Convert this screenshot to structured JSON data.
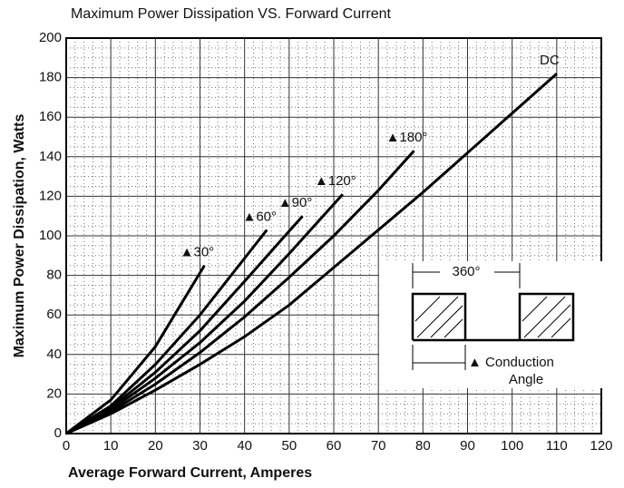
{
  "chart_data": {
    "type": "line",
    "title": "Maximum Power Dissipation VS. Forward Current",
    "xlabel": "Average Forward Current, Amperes",
    "ylabel": "Maximum Power Dissipation, Watts",
    "xlim": [
      0,
      120
    ],
    "ylim": [
      0,
      200
    ],
    "xticks": [
      0,
      10,
      20,
      30,
      40,
      50,
      60,
      70,
      80,
      90,
      100,
      110,
      120
    ],
    "yticks": [
      0,
      20,
      40,
      60,
      80,
      100,
      120,
      140,
      160,
      180,
      200
    ],
    "grid": true,
    "series": [
      {
        "name": "▲30°",
        "color": "#000000",
        "x": [
          0,
          10,
          20,
          31
        ],
        "values": [
          0,
          17,
          44,
          85
        ]
      },
      {
        "name": "▲60°",
        "color": "#000000",
        "x": [
          0,
          10,
          20,
          30,
          45
        ],
        "values": [
          0,
          14,
          35,
          60,
          103
        ]
      },
      {
        "name": "▲90°",
        "color": "#000000",
        "x": [
          0,
          10,
          20,
          30,
          40,
          53
        ],
        "values": [
          0,
          13,
          31,
          52,
          77,
          110
        ]
      },
      {
        "name": "▲120°",
        "color": "#000000",
        "x": [
          0,
          10,
          20,
          30,
          40,
          50,
          62
        ],
        "values": [
          0,
          12,
          28,
          46,
          67,
          91,
          121
        ]
      },
      {
        "name": "▲180°",
        "color": "#000000",
        "x": [
          0,
          10,
          20,
          30,
          40,
          50,
          60,
          70,
          78
        ],
        "values": [
          0,
          11,
          25,
          41,
          59,
          79,
          100,
          123,
          143
        ]
      },
      {
        "name": "DC",
        "color": "#000000",
        "x": [
          0,
          10,
          20,
          30,
          40,
          50,
          60,
          70,
          80,
          90,
          100,
          110
        ],
        "values": [
          0,
          10,
          22,
          35,
          49,
          65,
          84,
          103,
          122,
          142,
          162,
          182
        ]
      }
    ],
    "inset_labels": [
      "360°",
      "▲ Conduction",
      "Angle"
    ]
  }
}
